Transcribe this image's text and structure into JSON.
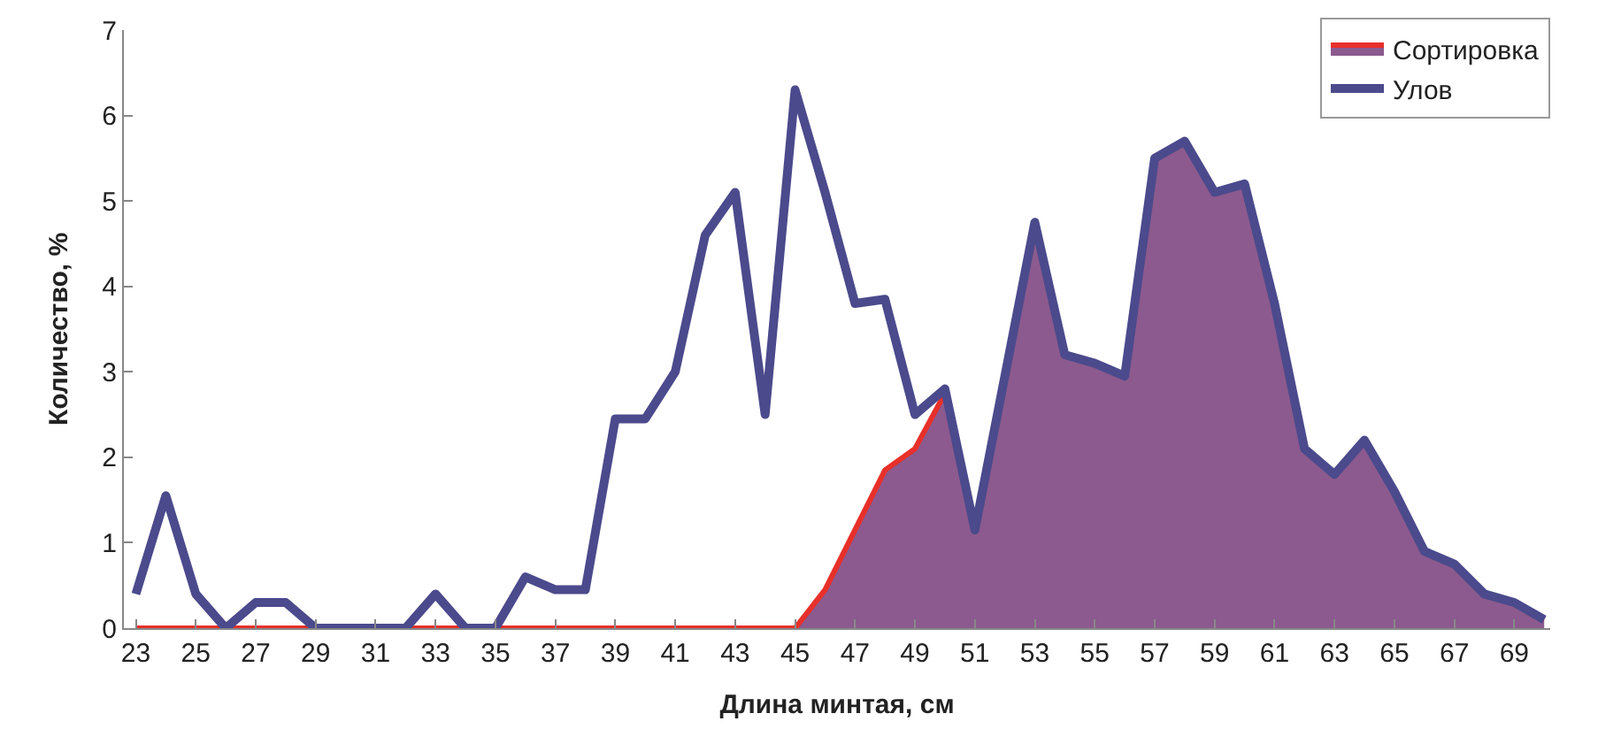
{
  "chart_data": {
    "type": "line",
    "xlabel": "Длина минтая, см",
    "ylabel": "Количество, %",
    "x": [
      23,
      24,
      25,
      26,
      27,
      28,
      29,
      30,
      31,
      32,
      33,
      34,
      35,
      36,
      37,
      38,
      39,
      40,
      41,
      42,
      43,
      44,
      45,
      46,
      47,
      48,
      49,
      50,
      51,
      52,
      53,
      54,
      55,
      56,
      57,
      58,
      59,
      60,
      61,
      62,
      63,
      64,
      65,
      66,
      67,
      68,
      69,
      70
    ],
    "series": [
      {
        "name": "Сортировка",
        "type": "area",
        "color": "#8c5a8e",
        "values": [
          0,
          0,
          0,
          0,
          0,
          0,
          0,
          0,
          0,
          0,
          0,
          0,
          0,
          0,
          0,
          0,
          0,
          0,
          0,
          0,
          0,
          0,
          0,
          0.45,
          1.15,
          1.85,
          2.1,
          2.75,
          1.15,
          2.95,
          4.75,
          3.2,
          3.1,
          2.95,
          5.5,
          5.7,
          5.1,
          5.2,
          3.8,
          2.1,
          1.8,
          2.2,
          1.6,
          0.9,
          0.75,
          0.4,
          0.3,
          0.1
        ]
      },
      {
        "name": "Улов",
        "color": "#4b4a8c",
        "values": [
          0.4,
          1.55,
          0.4,
          0,
          0.3,
          0.3,
          0,
          0,
          0,
          0,
          0.4,
          0,
          0,
          0.6,
          0.45,
          0.45,
          2.45,
          2.45,
          3.0,
          4.6,
          5.1,
          2.5,
          6.3,
          5.1,
          3.8,
          3.85,
          2.5,
          2.8,
          1.15,
          2.95,
          4.75,
          3.2,
          3.1,
          2.95,
          5.5,
          5.7,
          5.1,
          5.2,
          3.8,
          2.1,
          1.8,
          2.2,
          1.6,
          0.9,
          0.75,
          0.4,
          0.3,
          0.1
        ]
      }
    ],
    "xlim": [
      22.6,
      70.2
    ],
    "xticks": [
      23,
      25,
      27,
      29,
      31,
      33,
      35,
      37,
      39,
      41,
      43,
      45,
      47,
      49,
      51,
      53,
      55,
      57,
      59,
      61,
      63,
      65,
      67,
      69
    ],
    "ylim": [
      0,
      7
    ],
    "yticks": [
      0,
      1,
      2,
      3,
      4,
      5,
      6,
      7
    ],
    "legend": "top right",
    "marker": "none",
    "line_style": "solid"
  }
}
